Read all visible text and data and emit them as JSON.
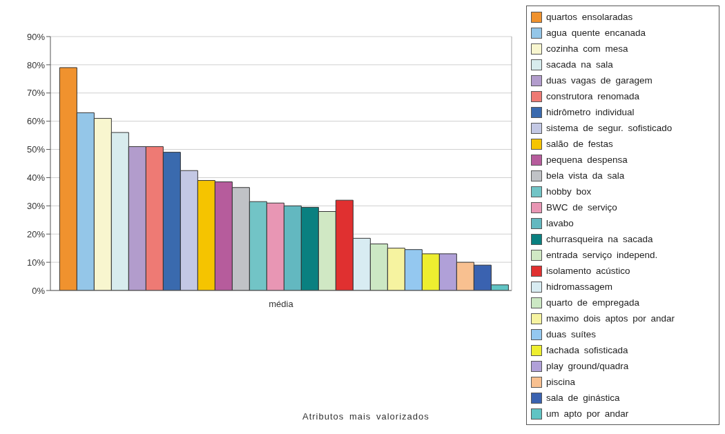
{
  "chart_data": {
    "type": "bar",
    "annotations": [
      "Atributos mais valorizados"
    ],
    "categories": [
      "média"
    ],
    "ylim": [
      0,
      90
    ],
    "yticks": [
      {
        "value": 0,
        "label": "0%"
      },
      {
        "value": 10,
        "label": "10%"
      },
      {
        "value": 20,
        "label": "20%"
      },
      {
        "value": 30,
        "label": "30%"
      },
      {
        "value": 40,
        "label": "40%"
      },
      {
        "value": 50,
        "label": "50%"
      },
      {
        "value": 60,
        "label": "60%"
      },
      {
        "value": 70,
        "label": "70%"
      },
      {
        "value": 80,
        "label": "80%"
      },
      {
        "value": 90,
        "label": "90%"
      }
    ],
    "grid": "y",
    "legend": "right",
    "series": [
      {
        "name": "quartos ensolaradas",
        "color": "#f0922e",
        "values": [
          79
        ]
      },
      {
        "name": "agua quente encanada",
        "color": "#94c6e8",
        "values": [
          63
        ]
      },
      {
        "name": "cozinha com mesa",
        "color": "#f8f6cf",
        "values": [
          61
        ]
      },
      {
        "name": "sacada na sala",
        "color": "#d8ecee",
        "values": [
          56
        ]
      },
      {
        "name": "duas vagas de garagem",
        "color": "#b29ccc",
        "values": [
          51
        ]
      },
      {
        "name": "construtora renomada",
        "color": "#ee7a74",
        "values": [
          51
        ]
      },
      {
        "name": "hidrômetro individual",
        "color": "#3a6aae",
        "values": [
          49
        ]
      },
      {
        "name": "sistema de segur. sofisticado",
        "color": "#c3c8e4",
        "values": [
          42.5
        ]
      },
      {
        "name": "salão de festas",
        "color": "#f5c400",
        "values": [
          39
        ]
      },
      {
        "name": "pequena despensa",
        "color": "#b65c9c",
        "values": [
          38.5
        ]
      },
      {
        "name": "bela vista da sala",
        "color": "#c0c2c6",
        "values": [
          36.5
        ]
      },
      {
        "name": "hobby box",
        "color": "#72c4c6",
        "values": [
          31.5
        ]
      },
      {
        "name": "BWC de serviço",
        "color": "#e896b4",
        "values": [
          31
        ]
      },
      {
        "name": "lavabo",
        "color": "#63b8c0",
        "values": [
          30
        ]
      },
      {
        "name": "churrasqueira na sacada",
        "color": "#0a8080",
        "values": [
          29.5
        ]
      },
      {
        "name": "entrada serviço independ.",
        "color": "#d0e8c4",
        "values": [
          28
        ]
      },
      {
        "name": "isolamento acústico",
        "color": "#e03030",
        "values": [
          32
        ]
      },
      {
        "name": "hidromassagem",
        "color": "#d8ecf2",
        "values": [
          18.5
        ]
      },
      {
        "name": "quarto de empregada",
        "color": "#cce8c4",
        "values": [
          16.5
        ]
      },
      {
        "name": "maximo dois aptos por andar",
        "color": "#f6f3a0",
        "values": [
          15
        ]
      },
      {
        "name": "duas suítes",
        "color": "#94c8f0",
        "values": [
          14.5
        ]
      },
      {
        "name": "fachada sofisticada",
        "color": "#eeee30",
        "values": [
          13
        ]
      },
      {
        "name": "play ground/quadra",
        "color": "#b0a0d8",
        "values": [
          13
        ]
      },
      {
        "name": "piscina",
        "color": "#f8c090",
        "values": [
          10
        ]
      },
      {
        "name": "sala de ginástica",
        "color": "#3a62b0",
        "values": [
          9
        ]
      },
      {
        "name": "um apto por andar",
        "color": "#60c4c4",
        "values": [
          2
        ]
      }
    ]
  }
}
